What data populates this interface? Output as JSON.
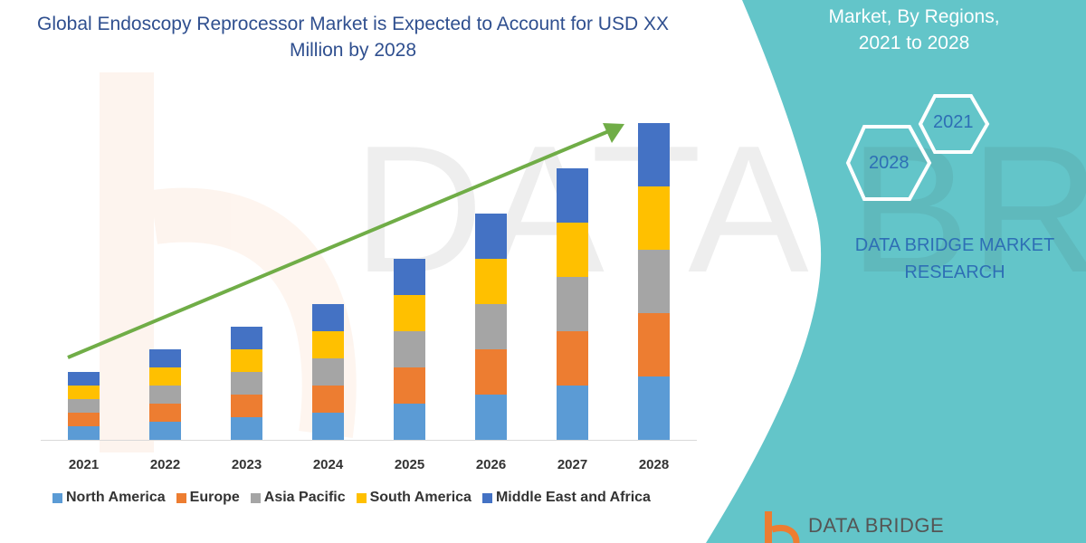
{
  "title": "Global Endoscopy Reprocessor Market is Expected to Account for USD XX Million by 2028",
  "side_panel": {
    "title_lines": [
      "Market, By Regions,",
      "2021 to 2028"
    ],
    "hex_labels": [
      "2021",
      "2028"
    ],
    "brand_lines": [
      "DATA BRIDGE MARKET",
      "RESEARCH"
    ],
    "logo_text": "DATA BRIDGE",
    "color": "#63c5c9"
  },
  "chart_data": {
    "type": "bar",
    "stacked": true,
    "title": "Global Endoscopy Reprocessor Market is Expected to Account for USD XX Million by 2028",
    "categories": [
      "2021",
      "2022",
      "2023",
      "2024",
      "2025",
      "2026",
      "2027",
      "2028"
    ],
    "series": [
      {
        "name": "North America",
        "color": "#5b9bd5",
        "values": [
          15,
          20,
          25,
          30,
          40,
          50,
          60,
          70
        ]
      },
      {
        "name": "Europe",
        "color": "#ed7d31",
        "values": [
          15,
          20,
          25,
          30,
          40,
          50,
          60,
          70
        ]
      },
      {
        "name": "Asia Pacific",
        "color": "#a5a5a5",
        "values": [
          15,
          20,
          25,
          30,
          40,
          50,
          60,
          70
        ]
      },
      {
        "name": "South America",
        "color": "#ffc000",
        "values": [
          15,
          20,
          25,
          30,
          40,
          50,
          60,
          70
        ]
      },
      {
        "name": "Middle East and Africa",
        "color": "#4472c4",
        "values": [
          15,
          20,
          25,
          30,
          40,
          50,
          60,
          70
        ]
      }
    ],
    "y_axis_shown": false,
    "grid": false,
    "legend_position": "bottom",
    "trend_arrow": {
      "color": "#70ad47",
      "direction": "up"
    }
  }
}
